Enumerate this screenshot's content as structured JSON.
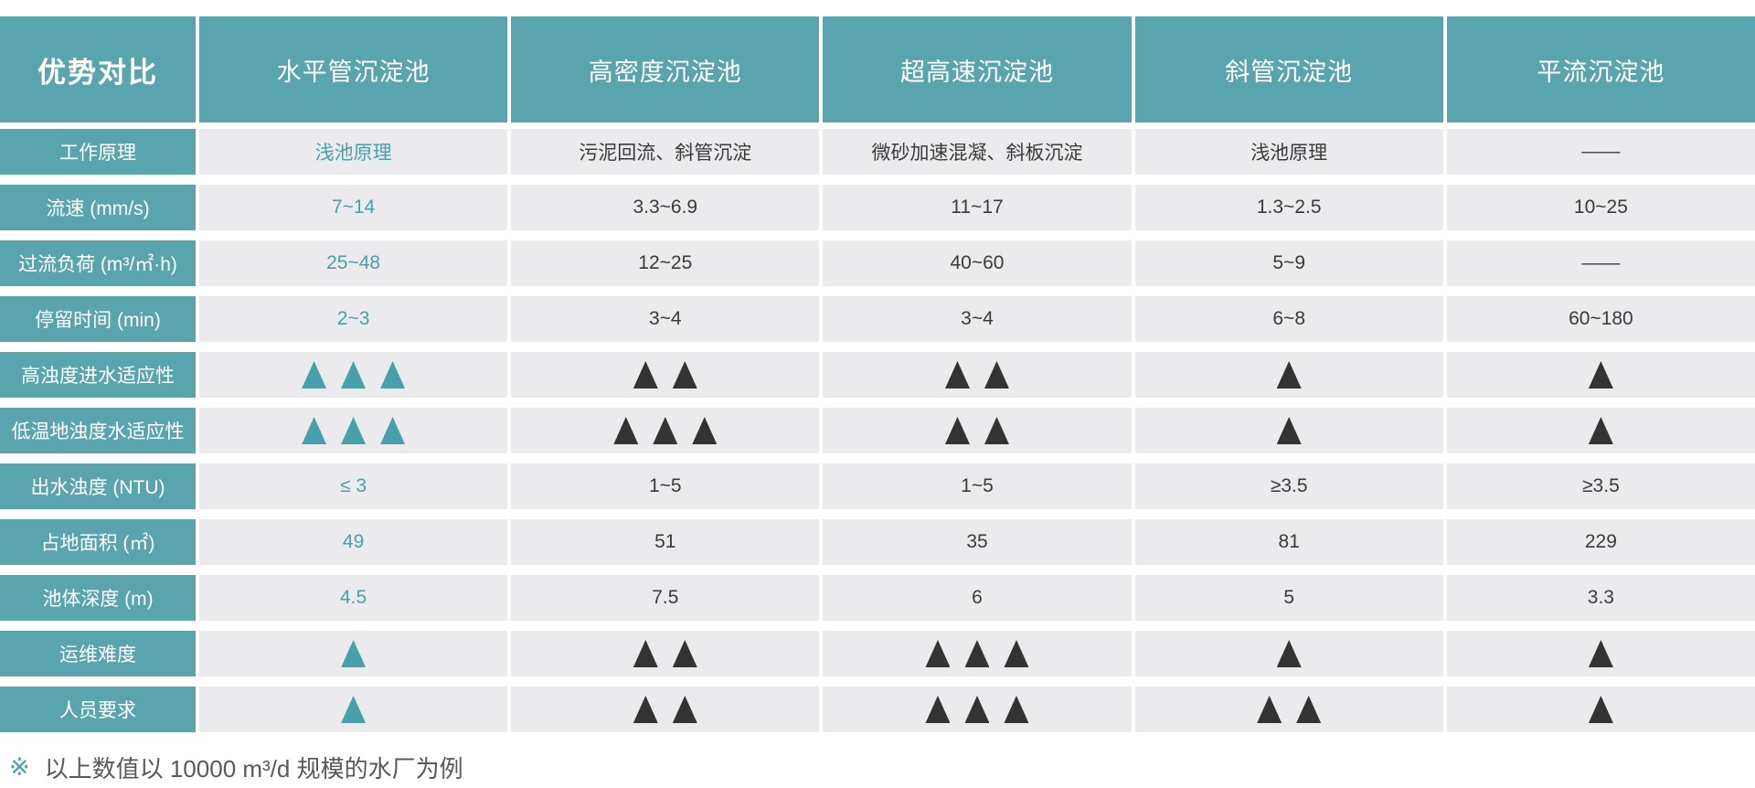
{
  "chart_data": {
    "type": "table",
    "corner_label": "优势对比",
    "columns": [
      "水平管沉淀池",
      "高密度沉淀池",
      "超高速沉淀池",
      "斜管沉淀池",
      "平流沉淀池"
    ],
    "highlight_column": "水平管沉淀池",
    "rows": [
      {
        "label": "工作原理",
        "kind": "text",
        "values": [
          "浅池原理",
          "污泥回流、斜管沉淀",
          "微砂加速混凝、斜板沉淀",
          "浅池原理",
          "——"
        ]
      },
      {
        "label": "流速 (mm/s)",
        "kind": "text",
        "values": [
          "7~14",
          "3.3~6.9",
          "11~17",
          "1.3~2.5",
          "10~25"
        ]
      },
      {
        "label": "过流负荷 (m³/㎡·h)",
        "kind": "text",
        "values": [
          "25~48",
          "12~25",
          "40~60",
          "5~9",
          "——"
        ]
      },
      {
        "label": "停留时间 (min)",
        "kind": "text",
        "values": [
          "2~3",
          "3~4",
          "3~4",
          "6~8",
          "60~180"
        ]
      },
      {
        "label": "高浊度进水适应性",
        "kind": "rating",
        "values": [
          3,
          2,
          2,
          1,
          1
        ]
      },
      {
        "label": "低温地浊度水适应性",
        "kind": "rating",
        "values": [
          3,
          3,
          2,
          1,
          1
        ]
      },
      {
        "label": "出水浊度 (NTU)",
        "kind": "text",
        "values": [
          "≤ 3",
          "1~5",
          "1~5",
          "≥3.5",
          "≥3.5"
        ]
      },
      {
        "label": "占地面积 (㎡)",
        "kind": "text",
        "values": [
          "49",
          "51",
          "35",
          "81",
          "229"
        ]
      },
      {
        "label": "池体深度 (m)",
        "kind": "text",
        "values": [
          "4.5",
          "7.5",
          "6",
          "5",
          "3.3"
        ]
      },
      {
        "label": "运维难度",
        "kind": "rating",
        "values": [
          1,
          2,
          3,
          1,
          1
        ]
      },
      {
        "label": "人员要求",
        "kind": "rating",
        "values": [
          1,
          2,
          3,
          2,
          1
        ]
      }
    ],
    "rating_symbol": "triangle-up",
    "footnote_marker": "※",
    "footnote_text": "以上数值以  10000 m³/d 规模的水厂为例"
  },
  "colors": {
    "teal": "#5AA5AD",
    "teal_text": "#48A0AB",
    "cell_bg": "#EBEBED",
    "dark_text": "#3A3A3A",
    "dark_triangle": "#333333",
    "footnote_text": "#595959"
  }
}
